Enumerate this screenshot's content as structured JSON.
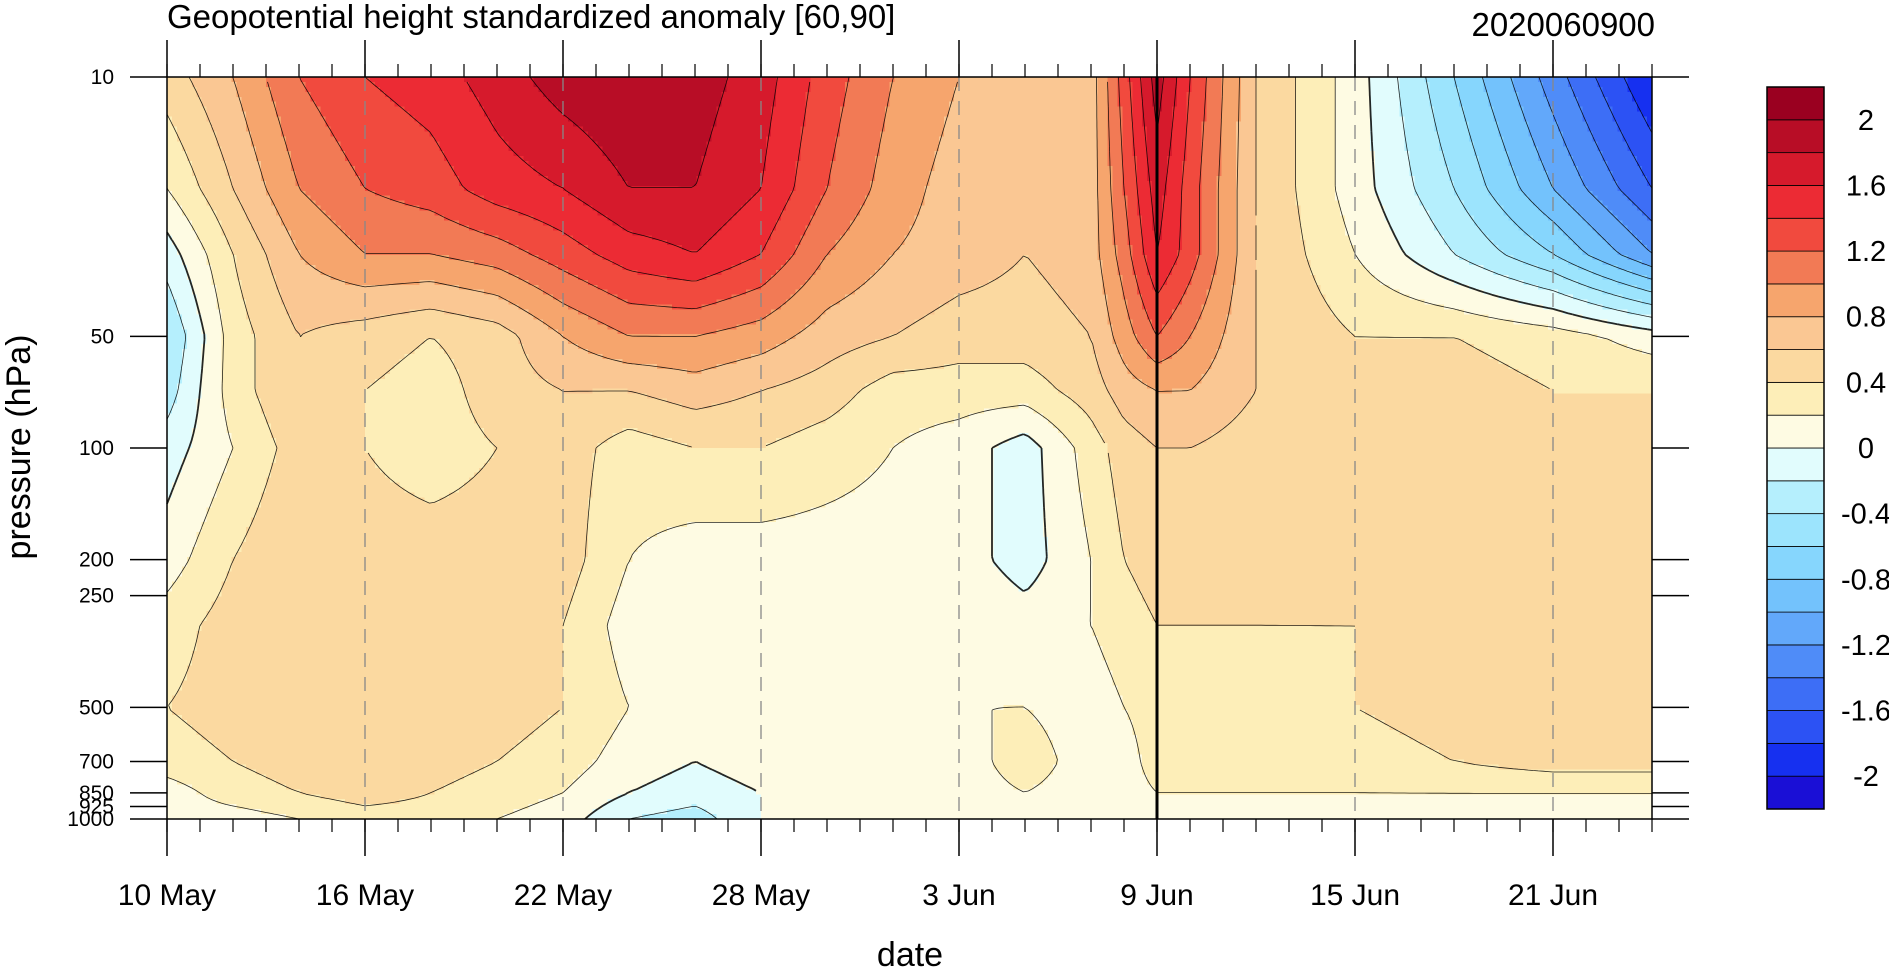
{
  "chart_data": {
    "type": "heatmap",
    "title": "Geopotential height standardized anomaly [60,90]",
    "timestamp_label": "2020060900",
    "xlabel": "date",
    "ylabel": "pressure (hPa)",
    "x_ticks": [
      {
        "label": "10 May",
        "day": 0
      },
      {
        "label": "16 May",
        "day": 6
      },
      {
        "label": "22 May",
        "day": 12
      },
      {
        "label": "28 May",
        "day": 18
      },
      {
        "label": "3 Jun",
        "day": 24
      },
      {
        "label": "9 Jun",
        "day": 30
      },
      {
        "label": "15 Jun",
        "day": 36
      },
      {
        "label": "21 Jun",
        "day": 42
      }
    ],
    "x_range_days": [
      0,
      45
    ],
    "current_day_marker": 30,
    "y_scale": "log",
    "y_range": [
      1000,
      10
    ],
    "y_ticks": [
      "10",
      "50",
      "100",
      "200",
      "250",
      "500",
      "700",
      "850",
      "925",
      "1000"
    ],
    "colorbar": {
      "levels": [
        -2.2,
        -2,
        -1.8,
        -1.6,
        -1.4,
        -1.2,
        -1,
        -0.8,
        -0.6,
        -0.4,
        -0.2,
        0,
        0.2,
        0.4,
        0.6,
        0.8,
        1,
        1.2,
        1.4,
        1.6,
        1.8,
        2,
        2.2
      ],
      "colors": [
        "#1a0fd6",
        "#1630f0",
        "#2c52f4",
        "#3d6ef6",
        "#4f8cf8",
        "#62a8fa",
        "#73c2fc",
        "#86d6fd",
        "#9ce4fd",
        "#b5effd",
        "#e1fcfd",
        "#fefbe3",
        "#fdeeb8",
        "#fbd9a0",
        "#fac793",
        "#f6a56d",
        "#f27a55",
        "#f14a3e",
        "#ec2b34",
        "#d61a2c",
        "#b80d26",
        "#9a0020"
      ],
      "labels": [
        "2",
        "1.6",
        "1.2",
        "0.8",
        "0.4",
        "0",
        "-0.4",
        "-0.8",
        "-1.2",
        "-1.6",
        "-2"
      ]
    },
    "field": {
      "days": [
        0,
        2,
        4,
        6,
        8,
        10,
        12,
        14,
        16,
        18,
        20,
        22,
        24,
        26,
        28,
        29,
        30,
        31,
        33,
        36,
        39,
        42,
        45
      ],
      "pressures": [
        10,
        20,
        30,
        50,
        70,
        100,
        200,
        300,
        500,
        700,
        850,
        1000
      ],
      "values": [
        [
          0.5,
          0.8,
          1.2,
          1.4,
          1.5,
          1.7,
          1.9,
          2.0,
          1.9,
          1.7,
          1.3,
          1.0,
          0.8,
          0.7,
          0.7,
          1.3,
          1.9,
          1.4,
          0.6,
          0.1,
          -0.6,
          -1.3,
          -2.0
        ],
        [
          0.2,
          0.6,
          1.0,
          1.2,
          1.3,
          1.5,
          1.6,
          1.8,
          1.8,
          1.6,
          1.2,
          0.9,
          0.7,
          0.6,
          0.7,
          1.2,
          1.7,
          1.3,
          0.6,
          0.1,
          -0.4,
          -1.0,
          -1.6
        ],
        [
          -0.1,
          0.4,
          0.8,
          1.0,
          1.0,
          1.1,
          1.3,
          1.5,
          1.6,
          1.4,
          1.0,
          0.8,
          0.7,
          0.6,
          0.7,
          1.1,
          1.6,
          1.3,
          0.6,
          0.2,
          -0.2,
          -0.6,
          -1.2
        ],
        [
          -0.4,
          0.3,
          0.6,
          0.5,
          0.4,
          0.5,
          0.8,
          1.0,
          1.0,
          0.9,
          0.7,
          0.6,
          0.5,
          0.5,
          0.6,
          0.9,
          1.2,
          1.0,
          0.6,
          0.4,
          0.4,
          0.3,
          0.1
        ],
        [
          -0.3,
          0.3,
          0.6,
          0.4,
          0.3,
          0.5,
          0.6,
          0.6,
          0.7,
          0.6,
          0.5,
          0.3,
          0.3,
          0.3,
          0.5,
          0.7,
          0.8,
          0.8,
          0.6,
          0.5,
          0.5,
          0.4,
          0.4
        ],
        [
          -0.1,
          0.2,
          0.5,
          0.4,
          0.3,
          0.4,
          0.5,
          0.3,
          0.4,
          0.4,
          0.3,
          0.2,
          0.1,
          -0.1,
          0.3,
          0.5,
          0.6,
          0.6,
          0.5,
          0.5,
          0.5,
          0.4,
          0.4
        ],
        [
          0.1,
          0.4,
          0.6,
          0.5,
          0.5,
          0.5,
          0.5,
          0.2,
          0.1,
          0.1,
          0.1,
          0.1,
          0.1,
          -0.1,
          0.2,
          0.4,
          0.5,
          0.5,
          0.5,
          0.5,
          0.5,
          0.5,
          0.5
        ],
        [
          0.3,
          0.5,
          0.6,
          0.5,
          0.5,
          0.5,
          0.4,
          0.1,
          0.0,
          0.1,
          0.1,
          0.1,
          0.2,
          0.1,
          0.2,
          0.3,
          0.4,
          0.4,
          0.4,
          0.4,
          0.5,
          0.5,
          0.5
        ],
        [
          0.4,
          0.5,
          0.5,
          0.5,
          0.5,
          0.5,
          0.4,
          0.2,
          0.1,
          0.1,
          0.2,
          0.1,
          0.2,
          0.2,
          0.1,
          0.2,
          0.3,
          0.3,
          0.3,
          0.4,
          0.5,
          0.5,
          0.5
        ],
        [
          0.3,
          0.4,
          0.5,
          0.6,
          0.5,
          0.4,
          0.3,
          0.1,
          0.0,
          0.1,
          0.2,
          0.1,
          0.1,
          0.3,
          0.1,
          0.1,
          0.3,
          0.3,
          0.3,
          0.3,
          0.4,
          0.5,
          0.5
        ],
        [
          0.1,
          0.3,
          0.4,
          0.5,
          0.4,
          0.3,
          0.2,
          0.0,
          -0.1,
          0.0,
          0.1,
          0.1,
          0.1,
          0.2,
          0.1,
          0.1,
          0.2,
          0.2,
          0.2,
          0.2,
          0.2,
          0.2,
          0.2
        ],
        [
          0.1,
          0.1,
          0.2,
          0.3,
          0.3,
          0.2,
          0.1,
          -0.2,
          -0.3,
          0.0,
          0.1,
          0.1,
          0.1,
          0.1,
          0.0,
          0.0,
          0.1,
          0.1,
          0.1,
          0.1,
          0.1,
          0.1,
          0.1
        ]
      ]
    }
  }
}
